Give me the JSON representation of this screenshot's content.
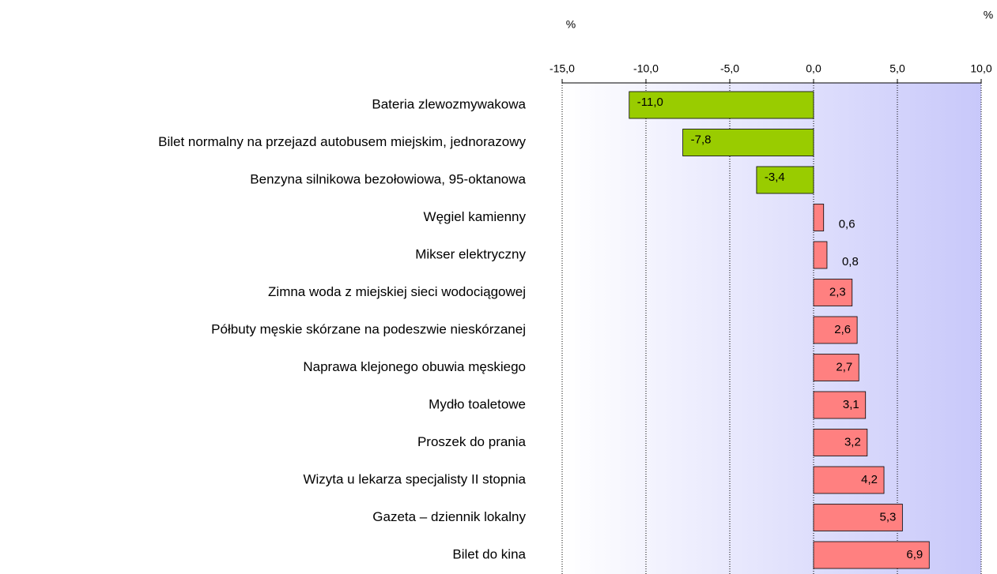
{
  "chart_data": {
    "type": "barh",
    "annotations": [
      "%",
      "%"
    ],
    "categories": [
      "Bateria zlewozmywakowa",
      "Bilet normalny na przejazd autobusem miejskim, jednorazowy",
      "Benzyna silnikowa bezołowiowa, 95-oktanowa",
      "Węgiel kamienny",
      "Mikser elektryczny",
      "Zimna woda z miejskiej sieci wodociągowej",
      "Półbuty męskie skórzane na podeszwie nieskórzanej",
      "Naprawa klejonego obuwia męskiego",
      "Mydło toaletowe",
      "Proszek do prania",
      "Wizyta u lekarza specjalisty II stopnia",
      "Gazeta – dziennik lokalny",
      "Bilet do kina"
    ],
    "values": [
      -11.0,
      -7.8,
      -3.4,
      0.6,
      0.8,
      2.3,
      2.6,
      2.7,
      3.1,
      3.2,
      4.2,
      5.3,
      6.9
    ],
    "value_labels": [
      "-11,0",
      "-7,8",
      "-3,4",
      "0,6",
      "0,8",
      "2,3",
      "2,6",
      "2,7",
      "3,1",
      "3,2",
      "4,2",
      "5,3",
      "6,9"
    ],
    "negative_color": "#99cc00",
    "positive_color": "#ff8080",
    "xlim": [
      -15,
      10
    ],
    "xticks": [
      {
        "value": -15,
        "label": "-15,0"
      },
      {
        "value": -10,
        "label": "-10,0"
      },
      {
        "value": -5,
        "label": "-5,0"
      },
      {
        "value": 0,
        "label": "0,0"
      },
      {
        "value": 5,
        "label": "5,0"
      },
      {
        "value": 10,
        "label": "10,0"
      }
    ],
    "grid": true
  }
}
